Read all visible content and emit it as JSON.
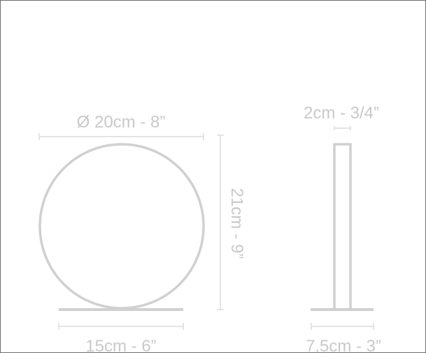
{
  "dimensions": {
    "diameter": "Ø 20cm - 8”",
    "height": "21cm - 9”",
    "thickness": "2cm - 3/4”",
    "base_width": "15cm - 6”",
    "base_depth": "7,5cm - 3”"
  },
  "colors": {
    "outline": "#d0d0d0",
    "dimension_line": "#dcdcdc",
    "text": "#c9c9c9",
    "frame": "#6e6e6e"
  }
}
